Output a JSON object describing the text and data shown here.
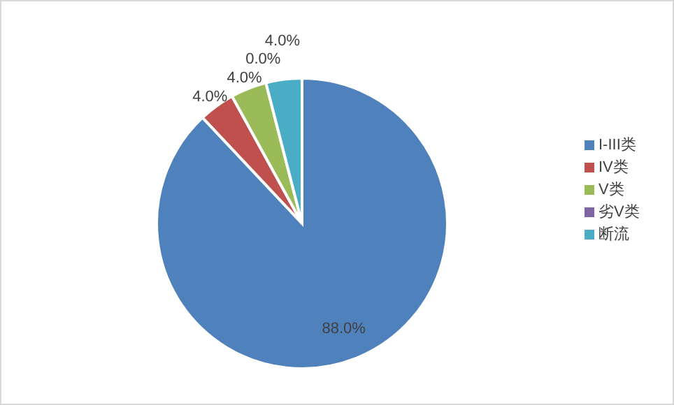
{
  "chart_data": {
    "type": "pie",
    "categories": [
      "I-III类",
      "IV类",
      "V类",
      "劣V类",
      "断流"
    ],
    "values": [
      88.0,
      4.0,
      4.0,
      0.0,
      4.0
    ],
    "colors": [
      "#4f81bd",
      "#c0504d",
      "#9bbb59",
      "#8064a2",
      "#4bacc6"
    ],
    "value_labels": [
      "88.0%",
      "4.0%",
      "4.0%",
      "0.0%",
      "4.0%"
    ],
    "legend": "right"
  }
}
